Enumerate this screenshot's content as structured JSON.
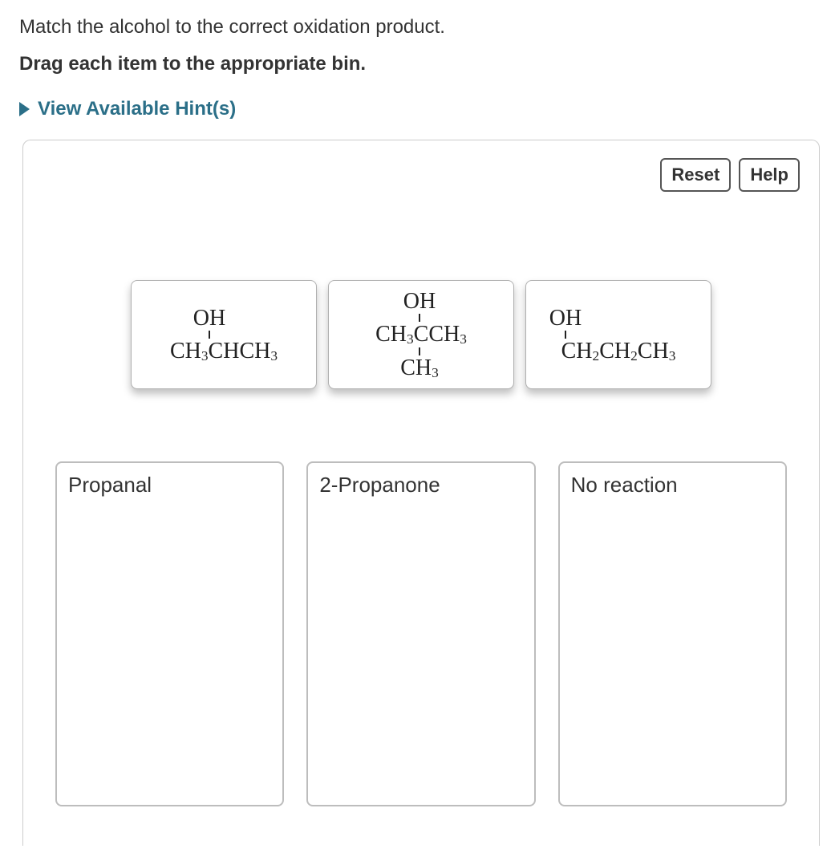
{
  "question": "Match the alcohol to the correct oxidation product.",
  "instruction": "Drag each item to the appropriate bin.",
  "hints_label": "View Available Hint(s)",
  "buttons": {
    "reset": "Reset",
    "help": "Help"
  },
  "cards": [
    {
      "id": "card-2-propanol",
      "oh": "OH",
      "left": "CH",
      "left_sub": "3",
      "center": "CHCH",
      "right_sub": "3",
      "has_lower": false
    },
    {
      "id": "card-2-methyl-2-propanol",
      "oh": "OH",
      "left": "CH",
      "left_sub": "3",
      "center": "CCH",
      "right_sub": "3",
      "has_lower": true,
      "lower": "CH",
      "lower_sub": "3"
    },
    {
      "id": "card-1-propanol",
      "oh": "OH",
      "left": "CH",
      "left_sub": "2",
      "center": "CH",
      "center_sub": "2",
      "right": "CH",
      "right_sub": "3",
      "has_lower": false
    }
  ],
  "bins": [
    {
      "id": "bin-propanal",
      "label": "Propanal"
    },
    {
      "id": "bin-2-propanone",
      "label": "2-Propanone"
    },
    {
      "id": "bin-no-reaction",
      "label": "No reaction"
    }
  ],
  "colors": {
    "hint_link": "#2b6f88",
    "border": "#cccccc",
    "bin_border": "#bdbdbd",
    "text": "#333333"
  }
}
